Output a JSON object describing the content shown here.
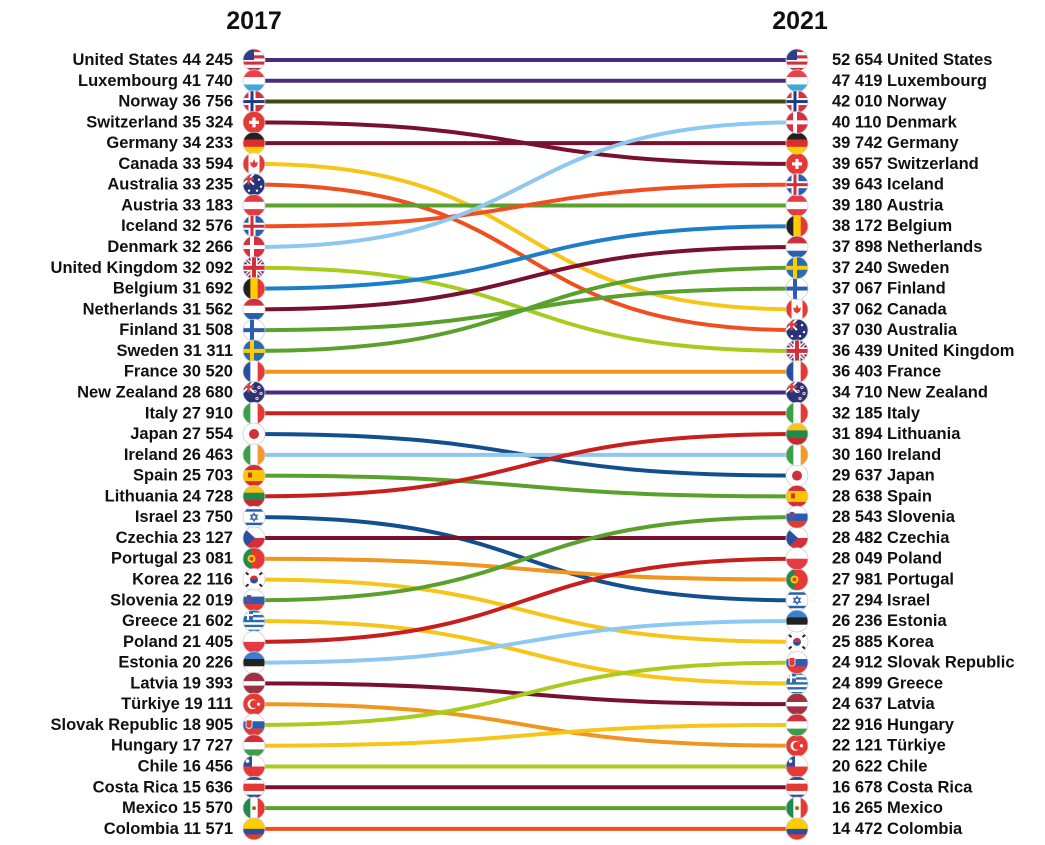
{
  "chart_data": {
    "type": "slope",
    "left_year": "2017",
    "right_year": "2021",
    "series": [
      {
        "country": "United States",
        "v2017": "44 245",
        "v2021": "52 654",
        "rank2017": 1,
        "rank2021": 1,
        "color": "#4b2a82",
        "flag": "us"
      },
      {
        "country": "Luxembourg",
        "v2017": "41 740",
        "v2021": "47 419",
        "rank2017": 2,
        "rank2021": 2,
        "color": "#4b2a82",
        "flag": "lu"
      },
      {
        "country": "Norway",
        "v2017": "36 756",
        "v2021": "42 010",
        "rank2017": 3,
        "rank2021": 3,
        "color": "#3d4a12",
        "flag": "no"
      },
      {
        "country": "Switzerland",
        "v2017": "35 324",
        "v2021": "39 657",
        "rank2017": 4,
        "rank2021": 6,
        "color": "#7a1030",
        "flag": "ch"
      },
      {
        "country": "Germany",
        "v2017": "34 233",
        "v2021": "39 742",
        "rank2017": 5,
        "rank2021": 5,
        "color": "#7a1030",
        "flag": "de"
      },
      {
        "country": "Canada",
        "v2017": "33 594",
        "v2021": "37 062",
        "rank2017": 6,
        "rank2021": 13,
        "color": "#f5c518",
        "flag": "ca"
      },
      {
        "country": "Australia",
        "v2017": "33 235",
        "v2021": "37 030",
        "rank2017": 7,
        "rank2021": 14,
        "color": "#f04e1e",
        "flag": "au"
      },
      {
        "country": "Austria",
        "v2017": "33 183",
        "v2021": "39 180",
        "rank2017": 8,
        "rank2021": 8,
        "color": "#5aa02c",
        "flag": "at"
      },
      {
        "country": "Iceland",
        "v2017": "32 576",
        "v2021": "39 643",
        "rank2017": 9,
        "rank2021": 7,
        "color": "#f04e1e",
        "flag": "is"
      },
      {
        "country": "Denmark",
        "v2017": "32 266",
        "v2021": "40 110",
        "rank2017": 10,
        "rank2021": 4,
        "color": "#8cc8f0",
        "flag": "dk"
      },
      {
        "country": "United Kingdom",
        "v2017": "32 092",
        "v2021": "36 439",
        "rank2017": 11,
        "rank2021": 15,
        "color": "#a8cc1e",
        "flag": "gb"
      },
      {
        "country": "Belgium",
        "v2017": "31 692",
        "v2021": "38 172",
        "rank2017": 12,
        "rank2021": 9,
        "color": "#1a7fc8",
        "flag": "be"
      },
      {
        "country": "Netherlands",
        "v2017": "31 562",
        "v2021": "37 898",
        "rank2017": 13,
        "rank2021": 10,
        "color": "#7a1030",
        "flag": "nl"
      },
      {
        "country": "Finland",
        "v2017": "31 508",
        "v2021": "37 067",
        "rank2017": 14,
        "rank2021": 12,
        "color": "#5aa02c",
        "flag": "fi"
      },
      {
        "country": "Sweden",
        "v2017": "31 311",
        "v2021": "37 240",
        "rank2017": 15,
        "rank2021": 11,
        "color": "#5aa02c",
        "flag": "se"
      },
      {
        "country": "France",
        "v2017": "30 520",
        "v2021": "36 403",
        "rank2017": 16,
        "rank2021": 16,
        "color": "#f0961e",
        "flag": "fr"
      },
      {
        "country": "New Zealand",
        "v2017": "28 680",
        "v2021": "34 710",
        "rank2017": 17,
        "rank2021": 17,
        "color": "#4b2a82",
        "flag": "nz"
      },
      {
        "country": "Italy",
        "v2017": "27 910",
        "v2021": "32 185",
        "rank2017": 18,
        "rank2021": 18,
        "color": "#c81e1e",
        "flag": "it"
      },
      {
        "country": "Japan",
        "v2017": "27 554",
        "v2021": "29 637",
        "rank2017": 19,
        "rank2021": 21,
        "color": "#124f8c",
        "flag": "jp"
      },
      {
        "country": "Ireland",
        "v2017": "26 463",
        "v2021": "30 160",
        "rank2017": 20,
        "rank2021": 20,
        "color": "#8cc8f0",
        "flag": "ie"
      },
      {
        "country": "Spain",
        "v2017": "25 703",
        "v2021": "28 638",
        "rank2017": 21,
        "rank2021": 22,
        "color": "#5aa02c",
        "flag": "es"
      },
      {
        "country": "Lithuania",
        "v2017": "24 728",
        "v2021": "31 894",
        "rank2017": 22,
        "rank2021": 19,
        "color": "#c81e1e",
        "flag": "lt"
      },
      {
        "country": "Israel",
        "v2017": "23 750",
        "v2021": "27 294",
        "rank2017": 23,
        "rank2021": 27,
        "color": "#124f8c",
        "flag": "il"
      },
      {
        "country": "Czechia",
        "v2017": "23 127",
        "v2021": "28 482",
        "rank2017": 24,
        "rank2021": 24,
        "color": "#7a1030",
        "flag": "cz"
      },
      {
        "country": "Portugal",
        "v2017": "23 081",
        "v2021": "27 981",
        "rank2017": 25,
        "rank2021": 26,
        "color": "#f0961e",
        "flag": "pt"
      },
      {
        "country": "Korea",
        "v2017": "22 116",
        "v2021": "25 885",
        "rank2017": 26,
        "rank2021": 29,
        "color": "#f5c518",
        "flag": "kr"
      },
      {
        "country": "Slovenia",
        "v2017": "22 019",
        "v2021": "28 543",
        "rank2017": 27,
        "rank2021": 23,
        "color": "#5aa02c",
        "flag": "si"
      },
      {
        "country": "Greece",
        "v2017": "21 602",
        "v2021": "24 899",
        "rank2017": 28,
        "rank2021": 31,
        "color": "#f5c518",
        "flag": "gr"
      },
      {
        "country": "Poland",
        "v2017": "21 405",
        "v2021": "28 049",
        "rank2017": 29,
        "rank2021": 25,
        "color": "#c81e1e",
        "flag": "pl"
      },
      {
        "country": "Estonia",
        "v2017": "20 226",
        "v2021": "26 236",
        "rank2017": 30,
        "rank2021": 28,
        "color": "#8cc8f0",
        "flag": "ee"
      },
      {
        "country": "Latvia",
        "v2017": "19 393",
        "v2021": "24 637",
        "rank2017": 31,
        "rank2021": 32,
        "color": "#7a1030",
        "flag": "lv"
      },
      {
        "country": "Türkiye",
        "v2017": "19 111",
        "v2021": "22 121",
        "rank2017": 32,
        "rank2021": 34,
        "color": "#f0961e",
        "flag": "tr"
      },
      {
        "country": "Slovak Republic",
        "v2017": "18 905",
        "v2021": "24 912",
        "rank2017": 33,
        "rank2021": 30,
        "color": "#a8cc1e",
        "flag": "sk"
      },
      {
        "country": "Hungary",
        "v2017": "17 727",
        "v2021": "22 916",
        "rank2017": 34,
        "rank2021": 33,
        "color": "#f5c518",
        "flag": "hu"
      },
      {
        "country": "Chile",
        "v2017": "16 456",
        "v2021": "20 622",
        "rank2017": 35,
        "rank2021": 35,
        "color": "#a8cc1e",
        "flag": "cl"
      },
      {
        "country": "Costa Rica",
        "v2017": "15 636",
        "v2021": "16 678",
        "rank2017": 36,
        "rank2021": 36,
        "color": "#7a1030",
        "flag": "cr"
      },
      {
        "country": "Mexico",
        "v2017": "15 570",
        "v2021": "16 265",
        "rank2017": 37,
        "rank2021": 37,
        "color": "#5aa02c",
        "flag": "mx"
      },
      {
        "country": "Colombia",
        "v2017": "11 571",
        "v2021": "14 472",
        "rank2017": 38,
        "rank2021": 38,
        "color": "#f04e1e",
        "flag": "co"
      }
    ]
  }
}
